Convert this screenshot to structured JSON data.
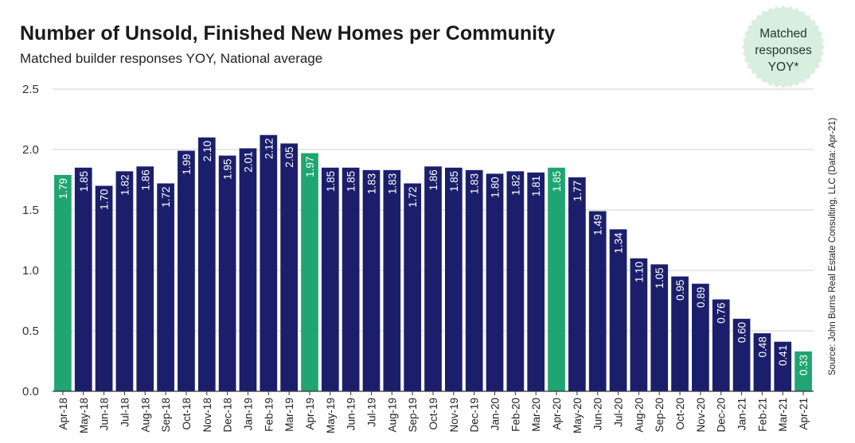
{
  "title": "Number of Unsold, Finished New Homes per Community",
  "subtitle": "Matched builder responses YOY, National average",
  "badge": {
    "lines": [
      "Matched",
      "responses",
      "YOY*"
    ]
  },
  "source": "Source: John Burns Real Estate Consulting, LLC (Data: Apr-21)",
  "colors": {
    "bar": "#1b1f6b",
    "highlight": "#1fa571",
    "badge": "#d8eede",
    "grid": "#d0d0d0",
    "axis": "#333333"
  },
  "chart_data": {
    "type": "bar",
    "title": "Number of Unsold, Finished New Homes per Community",
    "subtitle": "Matched builder responses YOY, National average",
    "xlabel": "",
    "ylabel": "",
    "ylim": [
      0,
      2.5
    ],
    "yticks": [
      "0.0",
      "0.5",
      "1.0",
      "1.5",
      "2.0",
      "2.5"
    ],
    "grid": true,
    "categories": [
      "Apr-18",
      "May-18",
      "Jun-18",
      "Jul-18",
      "Aug-18",
      "Sep-18",
      "Oct-18",
      "Nov-18",
      "Dec-18",
      "Jan-19",
      "Feb-19",
      "Mar-19",
      "Apr-19",
      "May-19",
      "Jun-19",
      "Jul-19",
      "Aug-19",
      "Sep-19",
      "Oct-19",
      "Nov-19",
      "Dec-19",
      "Jan-20",
      "Feb-20",
      "Mar-20",
      "Apr-20",
      "May-20",
      "Jun-20",
      "Jul-20",
      "Aug-20",
      "Sep-20",
      "Oct-20",
      "Nov-20",
      "Dec-20",
      "Jan-21",
      "Feb-21",
      "Mar-21",
      "Apr-21"
    ],
    "values": [
      1.79,
      1.85,
      1.7,
      1.82,
      1.86,
      1.72,
      1.99,
      2.1,
      1.95,
      2.01,
      2.12,
      2.05,
      1.97,
      1.85,
      1.85,
      1.83,
      1.83,
      1.72,
      1.86,
      1.85,
      1.83,
      1.8,
      1.82,
      1.81,
      1.85,
      1.77,
      1.49,
      1.34,
      1.1,
      1.05,
      0.95,
      0.89,
      0.76,
      0.6,
      0.48,
      0.41,
      0.33
    ],
    "labels": [
      "1.79",
      "1.85",
      "1.70",
      "1.82",
      "1.86",
      "1.72",
      "1.99",
      "2.10",
      "1.95",
      "2.01",
      "2.12",
      "2.05",
      "1.97",
      "1.85",
      "1.85",
      "1.83",
      "1.83",
      "1.72",
      "1.86",
      "1.85",
      "1.83",
      "1.80",
      "1.82",
      "1.81",
      "1.85",
      "1.77",
      "1.49",
      "1.34",
      "1.10",
      "1.05",
      "0.95",
      "0.89",
      "0.76",
      "0.60",
      "0.48",
      "0.41",
      "0.33"
    ],
    "highlighted": [
      "Apr-18",
      "Apr-19",
      "Apr-20",
      "Apr-21"
    ]
  }
}
